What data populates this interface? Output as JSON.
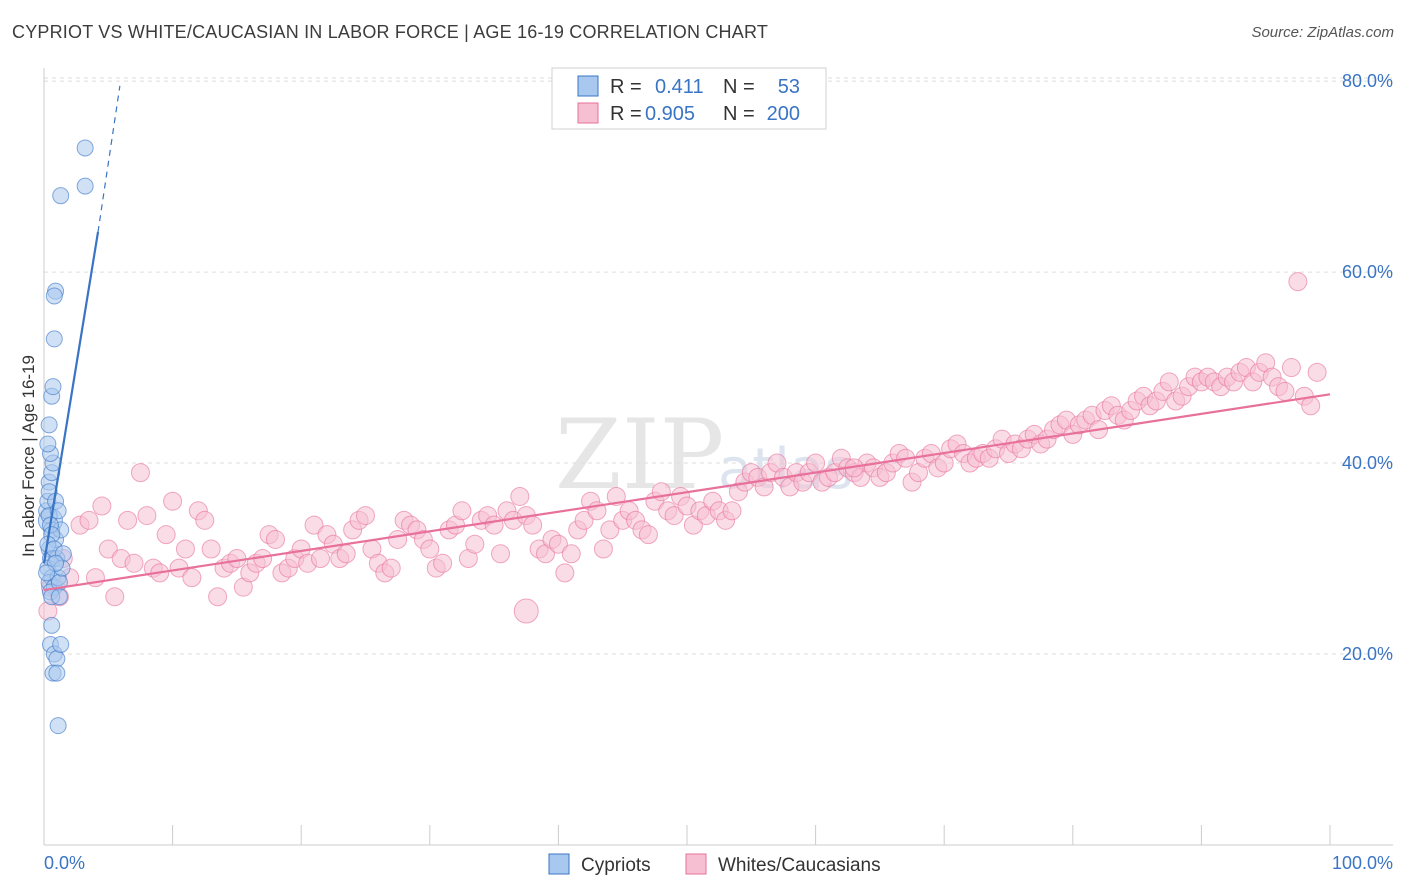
{
  "title": "CYPRIOT VS WHITE/CAUCASIAN IN LABOR FORCE | AGE 16-19 CORRELATION CHART",
  "source": "Source: ZipAtlas.com",
  "watermark": {
    "main": "ZIP",
    "sub": "atlas"
  },
  "colors": {
    "blue": "#3a74c4",
    "blue_fill": "#a9c8ef",
    "pink": "#e8719b",
    "pink_fill": "#f6bfd2",
    "grid": "#dddddd"
  },
  "chart_data": {
    "type": "scatter",
    "title": "CYPRIOT VS WHITE/CAUCASIAN IN LABOR FORCE | AGE 16-19 CORRELATION CHART",
    "xlabel": "",
    "ylabel": "In Labor Force | Age 16-19",
    "xlim": [
      0,
      100
    ],
    "ylim": [
      0,
      82
    ],
    "x_tick_labels": [
      "0.0%",
      "100.0%"
    ],
    "y_ticks": [
      20,
      40,
      60,
      80
    ],
    "y_tick_labels": [
      "20.0%",
      "40.0%",
      "60.0%",
      "80.0%"
    ],
    "grid": true,
    "legend": {
      "position": "top-center",
      "entries": [
        {
          "name": "Cypriots",
          "r_label": "R =",
          "r_value": "0.411",
          "n_label": "N =",
          "n_value": "53"
        },
        {
          "name": "Whites/Caucasians",
          "r_label": "R =",
          "r_value": "0.905",
          "n_label": "N =",
          "n_value": "200"
        }
      ]
    },
    "series": [
      {
        "name": "Cypriots",
        "color": "#3a74c4",
        "trend": {
          "x": [
            0,
            4.2
          ],
          "y": [
            29.5,
            64.2
          ],
          "extended_to": [
            5.9,
            79.5
          ]
        },
        "points": [
          [
            0.5,
            34
          ],
          [
            0.6,
            33
          ],
          [
            0.4,
            31
          ],
          [
            0.5,
            30
          ],
          [
            0.7,
            30
          ],
          [
            0.3,
            29
          ],
          [
            0.6,
            28
          ],
          [
            0.4,
            27.5
          ],
          [
            0.8,
            27
          ],
          [
            0.5,
            26.5
          ],
          [
            0.9,
            32
          ],
          [
            1.0,
            30
          ],
          [
            1.1,
            28
          ],
          [
            1.2,
            27.5
          ],
          [
            1.3,
            33
          ],
          [
            0.2,
            35
          ],
          [
            0.3,
            36
          ],
          [
            0.4,
            38
          ],
          [
            0.6,
            39
          ],
          [
            0.7,
            40
          ],
          [
            0.5,
            41
          ],
          [
            0.3,
            42
          ],
          [
            0.4,
            44
          ],
          [
            0.6,
            47
          ],
          [
            0.7,
            48
          ],
          [
            0.8,
            53
          ],
          [
            0.9,
            58
          ],
          [
            0.8,
            57.5
          ],
          [
            1.3,
            68
          ],
          [
            3.2,
            69
          ],
          [
            3.2,
            73
          ],
          [
            0.6,
            23
          ],
          [
            0.5,
            21
          ],
          [
            0.8,
            20
          ],
          [
            1.0,
            19.5
          ],
          [
            1.3,
            21
          ],
          [
            0.7,
            18
          ],
          [
            1.0,
            18
          ],
          [
            1.1,
            12.5
          ],
          [
            0.4,
            34.5
          ],
          [
            0.5,
            33.5
          ],
          [
            0.6,
            32.5
          ],
          [
            0.3,
            31.5
          ],
          [
            0.8,
            31
          ],
          [
            1.5,
            30.5
          ],
          [
            1.4,
            29
          ],
          [
            0.9,
            29.5
          ],
          [
            0.2,
            28.5
          ],
          [
            0.6,
            26
          ],
          [
            1.2,
            26
          ],
          [
            0.4,
            37
          ],
          [
            0.9,
            36
          ],
          [
            1.1,
            35
          ]
        ]
      },
      {
        "name": "Whites/Caucasians",
        "color": "#e8719b",
        "trend": {
          "x": [
            0,
            100
          ],
          "y": [
            26.7,
            47.2
          ]
        },
        "points": [
          [
            0.3,
            24.5
          ],
          [
            0.5,
            27
          ],
          [
            1.2,
            26
          ],
          [
            1.5,
            30
          ],
          [
            2,
            28
          ],
          [
            2.8,
            33.5
          ],
          [
            3.5,
            34
          ],
          [
            4.5,
            35.5
          ],
          [
            4,
            28
          ],
          [
            5,
            31
          ],
          [
            5.5,
            26
          ],
          [
            6,
            30
          ],
          [
            6.5,
            34
          ],
          [
            7,
            29.5
          ],
          [
            7.5,
            39
          ],
          [
            8,
            34.5
          ],
          [
            8.5,
            29
          ],
          [
            9,
            28.5
          ],
          [
            9.5,
            32.5
          ],
          [
            10,
            36
          ],
          [
            10.5,
            29
          ],
          [
            11,
            31
          ],
          [
            11.5,
            28
          ],
          [
            12,
            35
          ],
          [
            12.5,
            34
          ],
          [
            13,
            31
          ],
          [
            13.5,
            26
          ],
          [
            14,
            29
          ],
          [
            14.5,
            29.5
          ],
          [
            15,
            30
          ],
          [
            15.5,
            27
          ],
          [
            16,
            28.5
          ],
          [
            16.5,
            29.5
          ],
          [
            17,
            30
          ],
          [
            17.5,
            32.5
          ],
          [
            18,
            32
          ],
          [
            18.5,
            28.5
          ],
          [
            19,
            29
          ],
          [
            19.5,
            30
          ],
          [
            20,
            31
          ],
          [
            20.5,
            29.5
          ],
          [
            21,
            33.5
          ],
          [
            21.5,
            30
          ],
          [
            22,
            32.5
          ],
          [
            22.5,
            31.5
          ],
          [
            23,
            30
          ],
          [
            23.5,
            30.5
          ],
          [
            24,
            33
          ],
          [
            24.5,
            34
          ],
          [
            25,
            34.5
          ],
          [
            25.5,
            31
          ],
          [
            26,
            29.5
          ],
          [
            26.5,
            28.5
          ],
          [
            27,
            29
          ],
          [
            27.5,
            32
          ],
          [
            28,
            34
          ],
          [
            28.5,
            33.5
          ],
          [
            29,
            33
          ],
          [
            29.5,
            32
          ],
          [
            30,
            31
          ],
          [
            30.5,
            29
          ],
          [
            31,
            29.5
          ],
          [
            31.5,
            33
          ],
          [
            32,
            33.5
          ],
          [
            32.5,
            35
          ],
          [
            33,
            30
          ],
          [
            33.5,
            31.5
          ],
          [
            34,
            34
          ],
          [
            34.5,
            34.5
          ],
          [
            35,
            33.5
          ],
          [
            35.5,
            30.5
          ],
          [
            36,
            35
          ],
          [
            36.5,
            34
          ],
          [
            37,
            36.5
          ],
          [
            37.5,
            34.5
          ],
          [
            38,
            33.5
          ],
          [
            38.5,
            31
          ],
          [
            39,
            30.5
          ],
          [
            39.5,
            32
          ],
          [
            40,
            31.5
          ],
          [
            40.5,
            28.5
          ],
          [
            41,
            30.5
          ],
          [
            41.5,
            33
          ],
          [
            42,
            34
          ],
          [
            42.5,
            36
          ],
          [
            43,
            35
          ],
          [
            43.5,
            31
          ],
          [
            44,
            33
          ],
          [
            44.5,
            36.5
          ],
          [
            45,
            34
          ],
          [
            45.5,
            35
          ],
          [
            46,
            34
          ],
          [
            46.5,
            33
          ],
          [
            47,
            32.5
          ],
          [
            47.5,
            36
          ],
          [
            48,
            37
          ],
          [
            48.5,
            35
          ],
          [
            49,
            34.5
          ],
          [
            49.5,
            36.5
          ],
          [
            50,
            35.5
          ],
          [
            50.5,
            33.5
          ],
          [
            51,
            35
          ],
          [
            51.5,
            34.5
          ],
          [
            52,
            36
          ],
          [
            52.5,
            35
          ],
          [
            53,
            34
          ],
          [
            53.5,
            35
          ],
          [
            54,
            37
          ],
          [
            54.5,
            38
          ],
          [
            55,
            39
          ],
          [
            55.5,
            38.5
          ],
          [
            56,
            37.5
          ],
          [
            56.5,
            39
          ],
          [
            57,
            40
          ],
          [
            57.5,
            38.5
          ],
          [
            58,
            37.5
          ],
          [
            58.5,
            39
          ],
          [
            59,
            38
          ],
          [
            59.5,
            39
          ],
          [
            60,
            40
          ],
          [
            60.5,
            38
          ],
          [
            61,
            38.5
          ],
          [
            61.5,
            39
          ],
          [
            62,
            40.5
          ],
          [
            62.5,
            39.5
          ],
          [
            63,
            39
          ],
          [
            63.5,
            38.5
          ],
          [
            64,
            40
          ],
          [
            64.5,
            39.5
          ],
          [
            65,
            38.5
          ],
          [
            65.5,
            39
          ],
          [
            66,
            40
          ],
          [
            66.5,
            41
          ],
          [
            67,
            40.5
          ],
          [
            67.5,
            38
          ],
          [
            68,
            39
          ],
          [
            68.5,
            40.5
          ],
          [
            69,
            41
          ],
          [
            69.5,
            39.5
          ],
          [
            70,
            40
          ],
          [
            70.5,
            41.5
          ],
          [
            71,
            42
          ],
          [
            71.5,
            41
          ],
          [
            72,
            40
          ],
          [
            72.5,
            40.5
          ],
          [
            73,
            41
          ],
          [
            73.5,
            40.5
          ],
          [
            74,
            41.5
          ],
          [
            74.5,
            42.5
          ],
          [
            75,
            41
          ],
          [
            75.5,
            42
          ],
          [
            76,
            41.5
          ],
          [
            76.5,
            42.5
          ],
          [
            77,
            43
          ],
          [
            77.5,
            42
          ],
          [
            78,
            42.5
          ],
          [
            78.5,
            43.5
          ],
          [
            79,
            44
          ],
          [
            79.5,
            44.5
          ],
          [
            80,
            43
          ],
          [
            80.5,
            44
          ],
          [
            81,
            44.5
          ],
          [
            81.5,
            45
          ],
          [
            82,
            43.5
          ],
          [
            82.5,
            45.5
          ],
          [
            83,
            46
          ],
          [
            83.5,
            45
          ],
          [
            84,
            44.5
          ],
          [
            84.5,
            45.5
          ],
          [
            85,
            46.5
          ],
          [
            85.5,
            47
          ],
          [
            86,
            46
          ],
          [
            86.5,
            46.5
          ],
          [
            87,
            47.5
          ],
          [
            87.5,
            48.5
          ],
          [
            88,
            46.5
          ],
          [
            88.5,
            47
          ],
          [
            89,
            48
          ],
          [
            89.5,
            49
          ],
          [
            90,
            48.5
          ],
          [
            90.5,
            49
          ],
          [
            91,
            48.5
          ],
          [
            91.5,
            48
          ],
          [
            92,
            49
          ],
          [
            92.5,
            48.5
          ],
          [
            93,
            49.5
          ],
          [
            93.5,
            50
          ],
          [
            94,
            48.5
          ],
          [
            94.5,
            49.5
          ],
          [
            95,
            50.5
          ],
          [
            95.5,
            49
          ],
          [
            96,
            48
          ],
          [
            96.5,
            47.5
          ],
          [
            97,
            50
          ],
          [
            97.5,
            59
          ],
          [
            98,
            47
          ],
          [
            98.5,
            46
          ],
          [
            99,
            49.5
          ],
          [
            63,
            39.5
          ],
          [
            37.5,
            24.5
          ]
        ]
      }
    ]
  }
}
